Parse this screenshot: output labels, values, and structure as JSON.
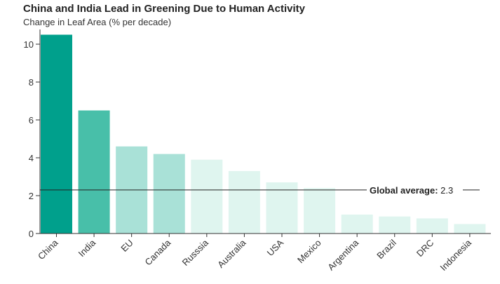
{
  "chart_data": {
    "type": "bar",
    "title": "China and India Lead in Greening Due to Human Activity",
    "subtitle": "Change in Leaf Area (% per decade)",
    "categories": [
      "China",
      "India",
      "EU",
      "Canada",
      "Russsia",
      "Australia",
      "USA",
      "Mexico",
      "Argentina",
      "Brazil",
      "DRC",
      "Indonesia"
    ],
    "values": [
      10.5,
      6.5,
      4.6,
      4.2,
      3.9,
      3.3,
      2.7,
      2.4,
      1.0,
      0.9,
      0.8,
      0.5
    ],
    "yticks": [
      0,
      2,
      4,
      6,
      8,
      10
    ],
    "ylim": [
      0,
      11
    ],
    "grid": false,
    "reference_line": {
      "value": 2.3,
      "label_bold": "Global average:",
      "label_value": "2.3"
    },
    "colors": [
      "#00a08c",
      "#48bfa9",
      "#a9e1d7",
      "#a9e1d7",
      "#dff5ef",
      "#dff5ef",
      "#dff5ef",
      "#dff5ef",
      "#dff5ef",
      "#dff5ef",
      "#dff5ef",
      "#dff5ef"
    ]
  }
}
